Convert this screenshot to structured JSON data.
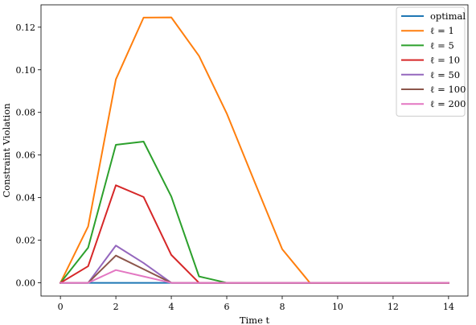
{
  "chart_data": {
    "type": "line",
    "xlabel": "Time t",
    "ylabel": "Constraint Violation",
    "xlim": [
      -0.7,
      14.7
    ],
    "ylim": [
      -0.0062,
      0.1305
    ],
    "x_ticks": [
      0,
      2,
      4,
      6,
      8,
      10,
      12,
      14
    ],
    "y_ticks": [
      0.0,
      0.02,
      0.04,
      0.06,
      0.08,
      0.1,
      0.12
    ],
    "x_tick_labels": [
      "0",
      "2",
      "4",
      "6",
      "8",
      "10",
      "12",
      "14"
    ],
    "y_tick_labels": [
      "0.00",
      "0.02",
      "0.04",
      "0.06",
      "0.08",
      "0.10",
      "0.12"
    ],
    "grid": false,
    "legend_position": "top-right",
    "x": [
      0,
      1,
      2,
      3,
      4,
      5,
      6,
      7,
      8,
      9,
      10,
      11,
      12,
      13,
      14
    ],
    "series": [
      {
        "name": "optimal",
        "color": "#1f77b4",
        "values": [
          0,
          0,
          0,
          0,
          0,
          0,
          0,
          0,
          0,
          0,
          0,
          0,
          0,
          0,
          0
        ]
      },
      {
        "name": "ℓ = 1",
        "color": "#ff7f0e",
        "values": [
          0,
          0.0265,
          0.0955,
          0.1245,
          0.1246,
          0.1065,
          0.0795,
          0.0475,
          0.0158,
          0,
          0,
          0,
          0,
          0,
          0
        ]
      },
      {
        "name": "ℓ = 5",
        "color": "#2ca02c",
        "values": [
          0,
          0.0165,
          0.0648,
          0.0663,
          0.0405,
          0.003,
          0,
          0,
          0,
          0,
          0,
          0,
          0,
          0,
          0
        ]
      },
      {
        "name": "ℓ = 10",
        "color": "#d62728",
        "values": [
          0,
          0.0078,
          0.0458,
          0.0403,
          0.0131,
          0,
          0,
          0,
          0,
          0,
          0,
          0,
          0,
          0,
          0
        ]
      },
      {
        "name": "ℓ = 50",
        "color": "#9467bd",
        "values": [
          0,
          0,
          0.0175,
          0.0093,
          0,
          0,
          0,
          0,
          0,
          0,
          0,
          0,
          0,
          0,
          0
        ]
      },
      {
        "name": "ℓ = 100",
        "color": "#8c564b",
        "values": [
          0,
          0,
          0.0128,
          0.0064,
          0,
          0,
          0,
          0,
          0,
          0,
          0,
          0,
          0,
          0,
          0
        ]
      },
      {
        "name": "ℓ = 200",
        "color": "#e377c2",
        "values": [
          0,
          0,
          0.006,
          0.003,
          0,
          0,
          0,
          0,
          0,
          0,
          0,
          0,
          0,
          0,
          0
        ]
      }
    ]
  }
}
